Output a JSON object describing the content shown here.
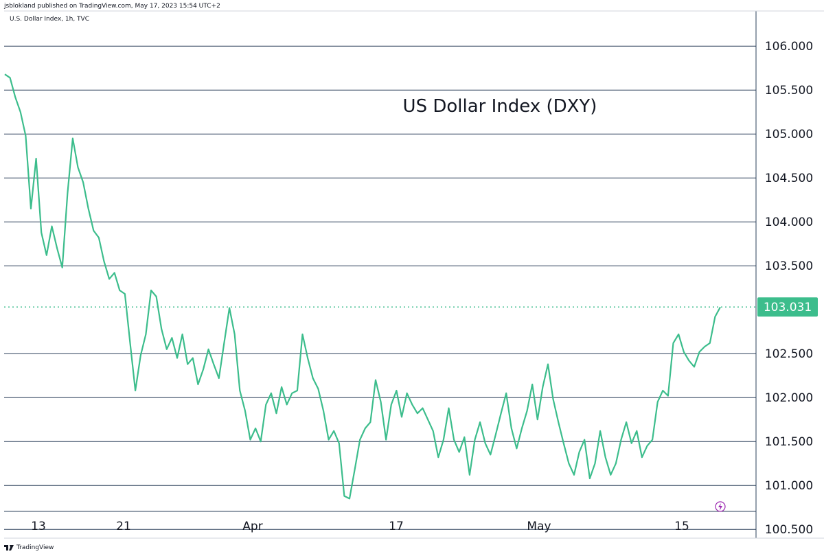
{
  "header": {
    "published": "jsblokland published on TradingView.com, May 17, 2023 15:54 UTC+2",
    "symbol": "U.S. Dollar Index, 1h, TVC"
  },
  "footer": {
    "brand": "TradingView"
  },
  "colors": {
    "line": "#3cbd8c",
    "grid": "#2a3f58",
    "text": "#131722",
    "price_tag": "#3cbd8c"
  },
  "icons": {
    "lightning": "lightning-icon",
    "logo": "tradingview-logo-icon"
  },
  "chart_data": {
    "type": "line",
    "title": "US Dollar Index (DXY)",
    "x_tick_labels": [
      "13",
      "21",
      "Apr",
      "17",
      "May",
      "15"
    ],
    "y_tick_labels": [
      "106.000",
      "105.500",
      "105.000",
      "104.500",
      "104.000",
      "103.500",
      "102.500",
      "102.000",
      "101.500",
      "101.000",
      "100.500"
    ],
    "ylim": [
      100.4,
      106.4
    ],
    "last_value": "103.031",
    "grid": "horizontal",
    "series": [
      {
        "x": [
          "2023-03-10",
          "2023-03-10",
          "2023-03-10",
          "2023-03-13",
          "2023-03-13",
          "2023-03-13",
          "2023-03-13",
          "2023-03-14",
          "2023-03-14",
          "2023-03-14",
          "2023-03-14",
          "2023-03-15",
          "2023-03-15",
          "2023-03-15",
          "2023-03-15",
          "2023-03-16",
          "2023-03-16",
          "2023-03-17",
          "2023-03-17",
          "2023-03-17",
          "2023-03-20",
          "2023-03-20",
          "2023-03-20",
          "2023-03-20",
          "2023-03-21",
          "2023-03-21",
          "2023-03-21",
          "2023-03-22",
          "2023-03-22",
          "2023-03-22",
          "2023-03-23",
          "2023-03-23",
          "2023-03-23",
          "2023-03-24",
          "2023-03-24",
          "2023-03-24",
          "2023-03-27",
          "2023-03-27",
          "2023-03-27",
          "2023-03-28",
          "2023-03-28",
          "2023-03-28",
          "2023-03-29",
          "2023-03-29",
          "2023-03-29",
          "2023-03-30",
          "2023-03-30",
          "2023-03-30",
          "2023-03-31",
          "2023-03-31",
          "2023-03-31",
          "2023-04-03",
          "2023-04-03",
          "2023-04-03",
          "2023-04-04",
          "2023-04-04",
          "2023-04-04",
          "2023-04-05",
          "2023-04-05",
          "2023-04-06",
          "2023-04-06",
          "2023-04-06",
          "2023-04-07",
          "2023-04-07",
          "2023-04-10",
          "2023-04-10",
          "2023-04-11",
          "2023-04-11",
          "2023-04-11",
          "2023-04-12",
          "2023-04-12",
          "2023-04-13",
          "2023-04-13",
          "2023-04-13",
          "2023-04-14",
          "2023-04-14",
          "2023-04-14",
          "2023-04-17",
          "2023-04-17",
          "2023-04-17",
          "2023-04-18",
          "2023-04-18",
          "2023-04-19",
          "2023-04-19",
          "2023-04-19",
          "2023-04-20",
          "2023-04-20",
          "2023-04-21",
          "2023-04-21",
          "2023-04-21",
          "2023-04-24",
          "2023-04-24",
          "2023-04-25",
          "2023-04-25",
          "2023-04-25",
          "2023-04-26",
          "2023-04-26",
          "2023-04-26",
          "2023-04-27",
          "2023-04-27",
          "2023-04-28",
          "2023-04-28",
          "2023-04-28",
          "2023-05-01",
          "2023-05-01",
          "2023-05-02",
          "2023-05-02",
          "2023-05-02",
          "2023-05-03",
          "2023-05-03",
          "2023-05-03",
          "2023-05-04",
          "2023-05-04",
          "2023-05-05",
          "2023-05-05",
          "2023-05-05",
          "2023-05-08",
          "2023-05-08",
          "2023-05-09",
          "2023-05-09",
          "2023-05-09",
          "2023-05-10",
          "2023-05-10",
          "2023-05-10",
          "2023-05-11",
          "2023-05-11",
          "2023-05-11",
          "2023-05-12",
          "2023-05-12",
          "2023-05-12",
          "2023-05-15",
          "2023-05-15",
          "2023-05-15",
          "2023-05-16",
          "2023-05-16",
          "2023-05-16",
          "2023-05-17",
          "2023-05-17"
        ],
        "values": [
          105.68,
          105.64,
          105.42,
          105.25,
          104.98,
          104.15,
          104.72,
          103.88,
          103.62,
          103.95,
          103.7,
          103.48,
          104.32,
          104.95,
          104.62,
          104.45,
          104.15,
          103.9,
          103.82,
          103.55,
          103.35,
          103.42,
          103.22,
          103.18,
          102.62,
          102.08,
          102.48,
          102.72,
          103.22,
          103.15,
          102.78,
          102.55,
          102.68,
          102.45,
          102.72,
          102.38,
          102.45,
          102.15,
          102.32,
          102.55,
          102.38,
          102.22,
          102.62,
          103.02,
          102.72,
          102.08,
          101.85,
          101.52,
          101.65,
          101.5,
          101.92,
          102.05,
          101.82,
          102.12,
          101.92,
          102.05,
          102.08,
          102.72,
          102.45,
          102.22,
          102.1,
          101.85,
          101.52,
          101.62,
          101.48,
          100.88,
          100.85,
          101.18,
          101.52,
          101.65,
          101.72,
          102.2,
          101.95,
          101.52,
          101.92,
          102.08,
          101.78,
          102.05,
          101.92,
          101.82,
          101.88,
          101.75,
          101.62,
          101.32,
          101.52,
          101.88,
          101.52,
          101.38,
          101.55,
          101.12,
          101.52,
          101.72,
          101.48,
          101.35,
          101.58,
          101.82,
          102.05,
          101.65,
          101.42,
          101.65,
          101.85,
          102.15,
          101.75,
          102.12,
          102.38,
          101.98,
          101.72,
          101.48,
          101.25,
          101.12,
          101.38,
          101.52,
          101.08,
          101.25,
          101.62,
          101.32,
          101.12,
          101.25,
          101.52,
          101.72,
          101.48,
          101.62,
          101.32,
          101.45,
          101.52,
          101.95,
          102.08,
          102.02,
          102.62,
          102.72,
          102.52,
          102.42,
          102.35,
          102.52,
          102.58,
          102.62,
          102.92,
          103.03
        ]
      }
    ]
  }
}
